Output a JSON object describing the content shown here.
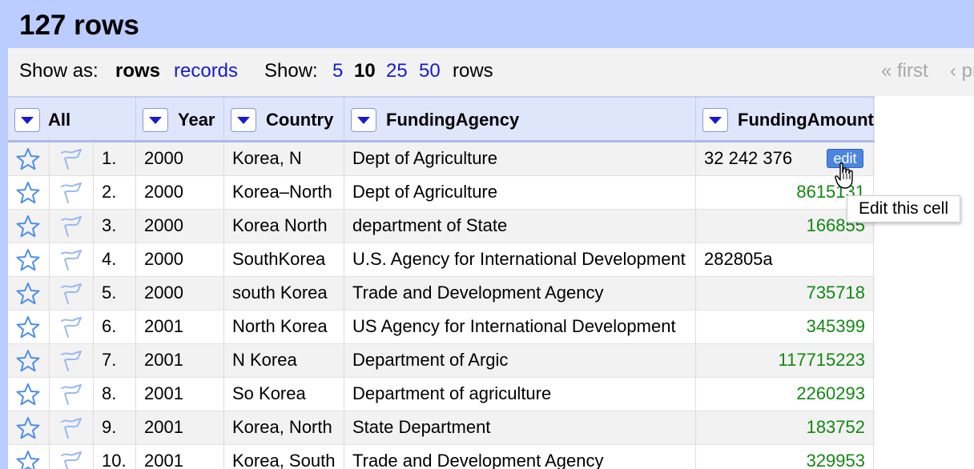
{
  "header": {
    "row_count": "127 rows"
  },
  "viewbar": {
    "show_as_label": "Show as:",
    "mode_rows": "rows",
    "mode_records": "records",
    "show_label": "Show:",
    "page_sizes": [
      "5",
      "10",
      "25",
      "50"
    ],
    "selected_page_size": "10",
    "rows_suffix": "rows",
    "pager_first": "« first",
    "pager_prev": "‹ pr"
  },
  "columns": [
    "All",
    "Year",
    "Country",
    "FundingAgency",
    "FundingAmount"
  ],
  "rows": [
    {
      "index": "1.",
      "year": "2000",
      "country": "Korea, N",
      "agency": "Dept of Agriculture",
      "amount": "32 242 376",
      "amount_numeric": false
    },
    {
      "index": "2.",
      "year": "2000",
      "country": "Korea–North",
      "agency": "Dept of Agriculture",
      "amount": "8615131",
      "amount_numeric": true
    },
    {
      "index": "3.",
      "year": "2000",
      "country": "Korea North",
      "agency": "department of State",
      "amount": "166855",
      "amount_numeric": true
    },
    {
      "index": "4.",
      "year": "2000",
      "country": "SouthKorea",
      "agency": "U.S. Agency for International Development",
      "amount": "282805a",
      "amount_numeric": false
    },
    {
      "index": "5.",
      "year": "2000",
      "country": "south Korea",
      "agency": "Trade and Development Agency",
      "amount": "735718",
      "amount_numeric": true
    },
    {
      "index": "6.",
      "year": "2001",
      "country": "North Korea",
      "agency": "US Agency for International Development",
      "amount": "345399",
      "amount_numeric": true
    },
    {
      "index": "7.",
      "year": "2001",
      "country": "N Korea",
      "agency": "Department of Argic",
      "amount": "117715223",
      "amount_numeric": true
    },
    {
      "index": "8.",
      "year": "2001",
      "country": "So Korea",
      "agency": "Department of agriculture",
      "amount": "2260293",
      "amount_numeric": true
    },
    {
      "index": "9.",
      "year": "2001",
      "country": "Korea, North",
      "agency": "State Department",
      "amount": "183752",
      "amount_numeric": true
    },
    {
      "index": "10.",
      "year": "2001",
      "country": "Korea, South",
      "agency": "Trade and Development Agency",
      "amount": "329953",
      "amount_numeric": true
    }
  ],
  "edit_button": {
    "label": "edit"
  },
  "tooltip": {
    "text": "Edit this cell"
  },
  "colors": {
    "header_bg": "#bbccff",
    "link": "#1a1ad0",
    "numeric_value": "#118811",
    "edit_button": "#4a85e0",
    "star_outline": "#4f8fe8"
  },
  "icons": {
    "star": "star-icon",
    "flag": "flag-icon",
    "dropdown": "dropdown-arrow-icon",
    "cursor": "hand-pointer-icon"
  }
}
